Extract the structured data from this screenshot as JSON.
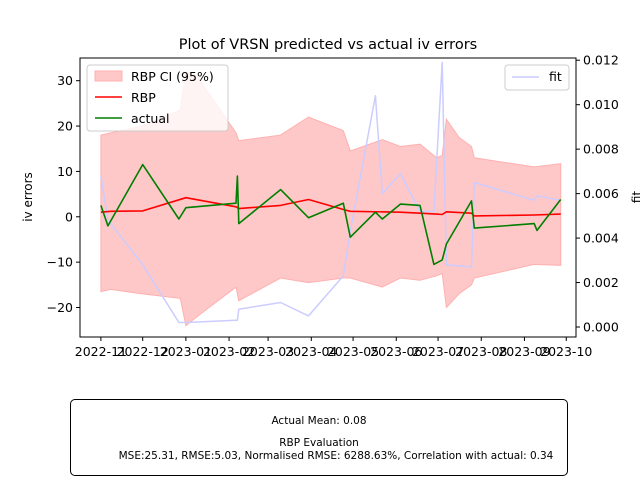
{
  "chart_data": {
    "type": "line",
    "title": "Plot of VRSN predicted vs actual iv errors",
    "ylabel": "iv errors",
    "y2label": "fit",
    "ylim": [
      -26.5,
      35
    ],
    "y2lim": [
      -0.00045,
      0.0121
    ],
    "xlim": [
      "2022-10-17",
      "2023-10-08"
    ],
    "x_ticks": [
      "2022-11-01",
      "2022-12-01",
      "2023-01-01",
      "2023-02-01",
      "2023-03-01",
      "2023-04-01",
      "2023-05-01",
      "2023-06-01",
      "2023-07-01",
      "2023-08-01",
      "2023-09-01",
      "2023-10-01"
    ],
    "x_tick_labels": [
      "2022-11",
      "2022-12",
      "2023-01",
      "2023-02",
      "2023-03",
      "2023-04",
      "2023-05",
      "2023-06",
      "2023-07",
      "2023-08",
      "2023-09",
      "2023-10"
    ],
    "y_ticks": [
      -20,
      -10,
      0,
      10,
      20,
      30
    ],
    "y_tick_labels": [
      "−20",
      "−10",
      "0",
      "10",
      "20",
      "30"
    ],
    "y2_ticks": [
      0,
      0.002,
      0.004,
      0.006,
      0.008,
      0.01,
      0.012
    ],
    "y2_tick_labels": [
      "0.000",
      "0.002",
      "0.004",
      "0.006",
      "0.008",
      "0.010",
      "0.012"
    ],
    "legend_left": [
      "RBP CI (95%)",
      "RBP",
      "actual"
    ],
    "legend_right": [
      "fit"
    ],
    "colors": {
      "ci": "#ffb0b0",
      "rbp": "#ff0000",
      "actual": "#007f00",
      "fit": "#ccccff"
    },
    "series": [
      {
        "name": "RBP CI (95%)",
        "x": [
          "2022-11-01",
          "2022-11-08",
          "2022-12-01",
          "2022-12-28",
          "2023-01-01",
          "2023-01-09",
          "2023-02-06",
          "2023-02-08",
          "2023-03-10",
          "2023-03-30",
          "2023-04-24",
          "2023-04-29",
          "2023-05-22",
          "2023-06-04",
          "2023-06-18",
          "2023-06-30",
          "2023-07-04",
          "2023-07-07",
          "2023-07-16",
          "2023-07-25",
          "2023-07-27",
          "2023-09-08",
          "2023-09-27"
        ],
        "upper": [
          18,
          18.5,
          20,
          23.5,
          32,
          31,
          18.5,
          16.8,
          18,
          22,
          19,
          14.5,
          17,
          15.5,
          16,
          13,
          13.5,
          21.5,
          17.5,
          15.5,
          13,
          11,
          11.7
        ],
        "lower": [
          -16.5,
          -16,
          -17,
          -18,
          -24,
          -22,
          -15.5,
          -18.5,
          -13.5,
          -14.5,
          -13.5,
          -13.5,
          -15.5,
          -13.5,
          -14,
          -13,
          -12.5,
          -20,
          -17,
          -15,
          -13.5,
          -10.5,
          -10.7
        ]
      },
      {
        "name": "RBP",
        "x": [
          "2022-11-01",
          "2022-11-08",
          "2022-12-01",
          "2023-01-01",
          "2023-02-06",
          "2023-02-08",
          "2023-03-10",
          "2023-03-30",
          "2023-04-24",
          "2023-04-29",
          "2023-06-04",
          "2023-06-30",
          "2023-07-04",
          "2023-07-07",
          "2023-07-25",
          "2023-07-27",
          "2023-09-08",
          "2023-09-27"
        ],
        "y": [
          1,
          1.2,
          1.3,
          4.2,
          2.2,
          1.8,
          2.5,
          3.8,
          1.6,
          1.2,
          1,
          0.6,
          0.5,
          1.1,
          0.8,
          0.2,
          0.4,
          0.6
        ]
      },
      {
        "name": "actual",
        "x": [
          "2022-11-01",
          "2022-11-06",
          "2022-12-01",
          "2022-12-27",
          "2023-01-01",
          "2023-02-06",
          "2023-02-07",
          "2023-02-08",
          "2023-03-10",
          "2023-03-30",
          "2023-04-24",
          "2023-04-29",
          "2023-05-17",
          "2023-05-22",
          "2023-06-04",
          "2023-06-18",
          "2023-06-28",
          "2023-07-04",
          "2023-07-07",
          "2023-07-25",
          "2023-07-27",
          "2023-09-08",
          "2023-09-10",
          "2023-09-27"
        ],
        "y": [
          2.5,
          -2,
          11.5,
          -0.5,
          2,
          3,
          9,
          -1.5,
          6,
          -0.2,
          3,
          -4.5,
          1,
          -0.5,
          2.8,
          2.5,
          -10.5,
          -9.5,
          -6,
          3.5,
          -2.5,
          -1.5,
          -3,
          3.8
        ]
      },
      {
        "name": "fit",
        "axis": "right",
        "x": [
          "2022-11-01",
          "2022-11-06",
          "2022-12-01",
          "2022-12-27",
          "2023-01-01",
          "2023-02-06",
          "2023-02-07",
          "2023-02-08",
          "2023-03-10",
          "2023-03-30",
          "2023-04-24",
          "2023-04-29",
          "2023-05-17",
          "2023-05-22",
          "2023-06-04",
          "2023-06-18",
          "2023-06-28",
          "2023-07-04",
          "2023-07-07",
          "2023-07-25",
          "2023-07-27",
          "2023-09-08",
          "2023-09-10",
          "2023-09-27"
        ],
        "y": [
          0.0068,
          0.0048,
          0.0028,
          0.0002,
          0.0002,
          0.0003,
          0.0003,
          0.0008,
          0.0011,
          0.0005,
          0.0023,
          0.0043,
          0.0104,
          0.006,
          0.0069,
          0.0052,
          0.0052,
          0.0119,
          0.0028,
          0.0027,
          0.0065,
          0.0057,
          0.0059,
          0.0057
        ]
      }
    ]
  },
  "stats": {
    "actual_mean": "Actual Mean: 0.08",
    "evaluation_title": "RBP Evaluation",
    "evaluation_metrics": "MSE:25.31, RMSE:5.03, Normalised RMSE: 6288.63%, Correlation with actual: 0.34"
  }
}
